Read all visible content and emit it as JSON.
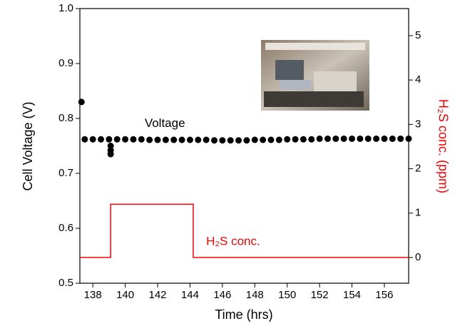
{
  "chart_data": {
    "type": "scatter",
    "x_label": "Time (hrs)",
    "y_label": "Cell Voltage (V)",
    "y2_label": "H₂S conc. (ppm)",
    "xlim": [
      137.2,
      157.5
    ],
    "xticks": [
      138,
      140,
      142,
      144,
      146,
      148,
      150,
      152,
      154,
      156
    ],
    "ylim": [
      0.5,
      1.0
    ],
    "yticks": [
      0.5,
      0.6,
      0.7,
      0.8,
      0.9,
      {
        "value": 1.0,
        "label": "1.0"
      }
    ],
    "y2lim": [
      -0.58,
      5.61
    ],
    "y2ticks": [
      0,
      1,
      2,
      3,
      4,
      5
    ],
    "series": [
      {
        "name": "Voltage",
        "color": "#000000",
        "style": "markers",
        "x": [
          137.3,
          137.5,
          138,
          138.5,
          139,
          139.5,
          140,
          140.5,
          141,
          141.5,
          142,
          142.5,
          143,
          143.5,
          144,
          144.5,
          145,
          145.5,
          146,
          146.5,
          147,
          147.5,
          148,
          148.5,
          149,
          149.5,
          150,
          150.5,
          151,
          151.5,
          152,
          152.5,
          153,
          153.5,
          154,
          154.5,
          155,
          155.5,
          156,
          156.5,
          157,
          157.5,
          139.1,
          139.1,
          139.1
        ],
        "values": [
          0.83,
          0.762,
          0.762,
          0.762,
          0.762,
          0.762,
          0.762,
          0.762,
          0.762,
          0.761,
          0.761,
          0.761,
          0.761,
          0.761,
          0.761,
          0.761,
          0.761,
          0.76,
          0.76,
          0.76,
          0.76,
          0.76,
          0.761,
          0.761,
          0.761,
          0.761,
          0.762,
          0.762,
          0.762,
          0.762,
          0.763,
          0.763,
          0.763,
          0.763,
          0.763,
          0.763,
          0.763,
          0.763,
          0.763,
          0.763,
          0.763,
          0.763,
          0.735,
          0.742,
          0.75
        ]
      },
      {
        "name": "H₂S conc.",
        "color": "#ff0000",
        "style": "line",
        "axis": "y2",
        "x": [
          137.2,
          139.1,
          139.1,
          144.2,
          144.2,
          157.5
        ],
        "values": [
          0,
          0,
          1.2,
          1.2,
          0,
          0
        ]
      }
    ],
    "annotations": [
      {
        "text": "Voltage",
        "x": 141.2,
        "y": 0.79
      },
      {
        "text": "H₂S conc.",
        "x": 145,
        "y2": 0.35
      }
    ]
  }
}
